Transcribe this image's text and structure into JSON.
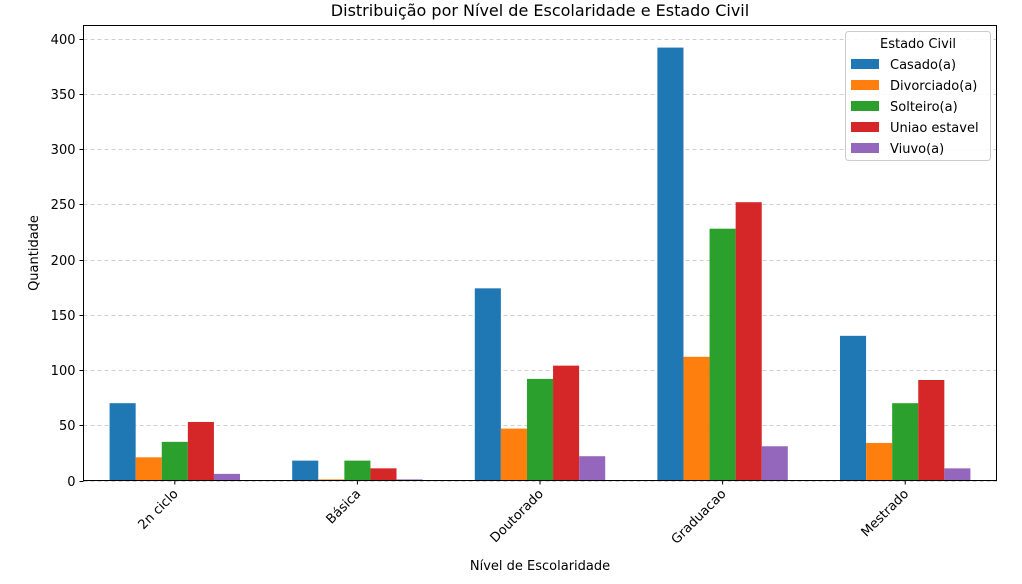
{
  "chart_data": {
    "type": "bar",
    "title": "Distribuição por Nível de Escolaridade e Estado Civil",
    "xlabel": "Nível de Escolaridade",
    "ylabel": "Quantidade",
    "categories": [
      "2n ciclo",
      "Básica",
      "Doutorado",
      "Graduacao",
      "Mestrado"
    ],
    "ylim": [
      0,
      412
    ],
    "yticks": [
      0,
      50,
      100,
      150,
      200,
      250,
      300,
      350,
      400
    ],
    "grid": "horizontal-dashed",
    "legend": {
      "title": "Estado Civil",
      "placement": "top-right"
    },
    "series": [
      {
        "name": "Casado(a)",
        "color": "#1f77b4",
        "values": [
          70,
          18,
          174,
          392,
          131
        ]
      },
      {
        "name": "Divorciado(a)",
        "color": "#ff7f0e",
        "values": [
          21,
          1,
          47,
          112,
          34
        ]
      },
      {
        "name": "Solteiro(a)",
        "color": "#2ca02c",
        "values": [
          35,
          18,
          92,
          228,
          70
        ]
      },
      {
        "name": "Uniao estavel",
        "color": "#d62728",
        "values": [
          53,
          11,
          104,
          252,
          91
        ]
      },
      {
        "name": "Viuvo(a)",
        "color": "#9467bd",
        "values": [
          6,
          1,
          22,
          31,
          11
        ]
      }
    ]
  }
}
